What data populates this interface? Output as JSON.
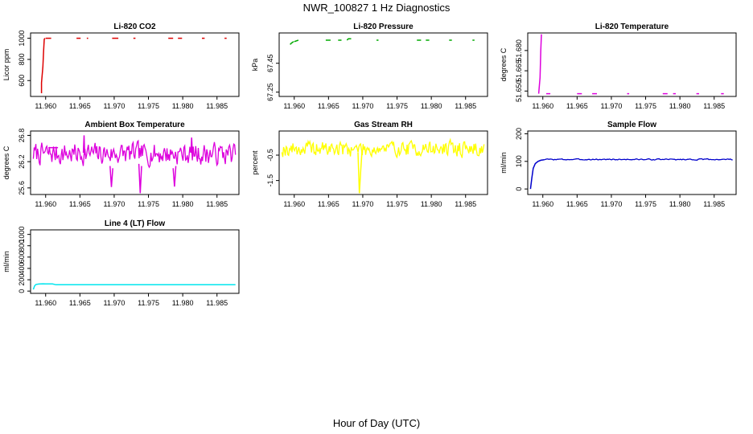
{
  "figure": {
    "title": "NWR_100827  1 Hz Diagnostics",
    "xlabel": "Hour of Day (UTC)"
  },
  "chart_data": [
    {
      "type": "line",
      "title": "Li-820 CO2",
      "ylabel": "Licor ppm",
      "xlim": [
        11.9578,
        11.9882
      ],
      "ylim": [
        450,
        1050
      ],
      "xticks": [
        11.96,
        11.965,
        11.97,
        11.975,
        11.98,
        11.985
      ],
      "xtick_labels": [
        "11.960",
        "11.965",
        "11.970",
        "11.975",
        "11.980",
        "11.985"
      ],
      "yticks": [
        600,
        800,
        1000
      ],
      "ytick_labels": [
        "600",
        "800",
        "1000"
      ],
      "color": "#dd0000",
      "style": "segments",
      "series": [
        {
          "name": "spike",
          "x": [
            11.9594,
            11.9594,
            11.9596,
            11.9597,
            11.9598,
            11.9599
          ],
          "y": [
            480,
            580,
            730,
            880,
            990,
            1000
          ]
        },
        {
          "name": "s1",
          "x": [
            11.96,
            11.9608
          ],
          "y": [
            1000,
            1000
          ]
        },
        {
          "name": "s2",
          "x": [
            11.9645,
            11.9651
          ],
          "y": [
            1000,
            1000
          ]
        },
        {
          "name": "s3",
          "x": [
            11.966,
            11.9662
          ],
          "y": [
            1000,
            1000
          ]
        },
        {
          "name": "s4",
          "x": [
            11.9697,
            11.9706
          ],
          "y": [
            1000,
            1000
          ]
        },
        {
          "name": "s5",
          "x": [
            11.9728,
            11.9731
          ],
          "y": [
            1000,
            1000
          ]
        },
        {
          "name": "s6",
          "x": [
            11.9779,
            11.9786
          ],
          "y": [
            1000,
            1000
          ]
        },
        {
          "name": "s7",
          "x": [
            11.9793,
            11.9799
          ],
          "y": [
            1000,
            1000
          ]
        },
        {
          "name": "s8",
          "x": [
            11.9828,
            11.9832
          ],
          "y": [
            1000,
            1000
          ]
        },
        {
          "name": "s9",
          "x": [
            11.9861,
            11.9864
          ],
          "y": [
            1000,
            1000
          ]
        }
      ]
    },
    {
      "type": "line",
      "title": "Li-820 Pressure",
      "ylabel": "kPa",
      "xlim": [
        11.9578,
        11.9882
      ],
      "ylim": [
        67.22,
        67.66
      ],
      "xticks": [
        11.96,
        11.965,
        11.97,
        11.975,
        11.98,
        11.985
      ],
      "xtick_labels": [
        "11.960",
        "11.965",
        "11.970",
        "11.975",
        "11.980",
        "11.985"
      ],
      "yticks": [
        67.25,
        67.45
      ],
      "ytick_labels": [
        "67.25",
        "67.45"
      ],
      "color": "#00aa00",
      "style": "segments",
      "series": [
        {
          "name": "s1",
          "x": [
            11.9594,
            11.9596,
            11.9599
          ],
          "y": [
            67.58,
            67.59,
            67.6
          ]
        },
        {
          "name": "s2",
          "x": [
            11.96,
            11.9606
          ],
          "y": [
            67.6,
            67.61
          ]
        },
        {
          "name": "s3",
          "x": [
            11.9646,
            11.9653
          ],
          "y": [
            67.61,
            67.61
          ]
        },
        {
          "name": "s4",
          "x": [
            11.9664,
            11.9669
          ],
          "y": [
            67.61,
            67.61
          ]
        },
        {
          "name": "s5",
          "x": [
            11.9677,
            11.9679,
            11.9683
          ],
          "y": [
            67.61,
            67.62,
            67.62
          ]
        },
        {
          "name": "s6",
          "x": [
            11.972,
            11.9723
          ],
          "y": [
            67.61,
            67.61
          ]
        },
        {
          "name": "s7",
          "x": [
            11.9779,
            11.9785
          ],
          "y": [
            67.61,
            67.61
          ]
        },
        {
          "name": "s8",
          "x": [
            11.9792,
            11.9797
          ],
          "y": [
            67.61,
            67.61
          ]
        },
        {
          "name": "s9",
          "x": [
            11.9826,
            11.983
          ],
          "y": [
            67.61,
            67.61
          ]
        },
        {
          "name": "s10",
          "x": [
            11.986,
            11.9863
          ],
          "y": [
            67.61,
            67.61
          ]
        }
      ]
    },
    {
      "type": "line",
      "title": "Li-820 Temperature",
      "ylabel": "degrees C",
      "xlim": [
        11.9578,
        11.9882
      ],
      "ylim": [
        51.646,
        51.693
      ],
      "xticks": [
        11.96,
        11.965,
        11.97,
        11.975,
        11.98,
        11.985
      ],
      "xtick_labels": [
        "11.960",
        "11.965",
        "11.970",
        "11.975",
        "11.980",
        "11.985"
      ],
      "yticks": [
        51.65,
        51.665,
        51.68
      ],
      "ytick_labels": [
        "51.650",
        "51.665",
        "51.680"
      ],
      "color": "#dd00dd",
      "style": "segments",
      "series": [
        {
          "name": "spike",
          "x": [
            11.9594,
            11.9596,
            11.9597,
            11.9598
          ],
          "y": [
            51.648,
            51.66,
            51.68,
            51.692
          ]
        },
        {
          "name": "s1",
          "x": [
            11.9605,
            11.9611
          ],
          "y": [
            51.648,
            51.648
          ]
        },
        {
          "name": "s2",
          "x": [
            11.965,
            11.9657
          ],
          "y": [
            51.648,
            51.648
          ]
        },
        {
          "name": "s3",
          "x": [
            11.9672,
            11.9679
          ],
          "y": [
            51.648,
            51.648
          ]
        },
        {
          "name": "s4",
          "x": [
            11.9723,
            11.9726
          ],
          "y": [
            51.648,
            51.648
          ]
        },
        {
          "name": "s5",
          "x": [
            11.9775,
            11.9782
          ],
          "y": [
            51.648,
            51.648
          ]
        },
        {
          "name": "s6",
          "x": [
            11.979,
            11.9794
          ],
          "y": [
            51.648,
            51.648
          ]
        },
        {
          "name": "s7",
          "x": [
            11.9824,
            11.9828
          ],
          "y": [
            51.648,
            51.648
          ]
        },
        {
          "name": "s8",
          "x": [
            11.986,
            11.9864
          ],
          "y": [
            51.648,
            51.648
          ]
        }
      ]
    },
    {
      "type": "line",
      "title": "Ambient Box Temperature",
      "ylabel": "degrees C",
      "xlim": [
        11.9578,
        11.9882
      ],
      "ylim": [
        25.45,
        26.9
      ],
      "xticks": [
        11.96,
        11.965,
        11.97,
        11.975,
        11.98,
        11.985
      ],
      "xtick_labels": [
        "11.960",
        "11.965",
        "11.970",
        "11.975",
        "11.980",
        "11.985"
      ],
      "yticks": [
        25.6,
        26.2,
        26.8
      ],
      "ytick_labels": [
        "25.6",
        "26.2",
        "26.8"
      ],
      "color": "#dd00dd",
      "style": "noise",
      "noise": {
        "x0": 11.9582,
        "x1": 11.9877,
        "n": 240,
        "base": 26.38,
        "amp": 0.34,
        "seed": 7
      },
      "series": [
        {
          "name": "flat",
          "x": [
            11.9604,
            11.9618
          ],
          "y": [
            26.52,
            26.52
          ]
        },
        {
          "name": "drop1",
          "x": [
            11.9694,
            11.9696,
            11.9698
          ],
          "y": [
            26.1,
            25.62,
            26.05
          ]
        },
        {
          "name": "drop2",
          "x": [
            11.9736,
            11.9738,
            11.974
          ],
          "y": [
            26.15,
            25.48,
            26.1
          ]
        },
        {
          "name": "drop3",
          "x": [
            11.9786,
            11.9788,
            11.979
          ],
          "y": [
            26.05,
            25.63,
            26.1
          ]
        },
        {
          "name": "peak1",
          "x": [
            11.9655,
            11.9656,
            11.9657
          ],
          "y": [
            26.4,
            26.8,
            26.35
          ]
        },
        {
          "name": "peak2",
          "x": [
            11.9812,
            11.9813,
            11.9814
          ],
          "y": [
            26.4,
            26.75,
            26.4
          ]
        }
      ]
    },
    {
      "type": "line",
      "title": "Gas Stream RH",
      "ylabel": "percent",
      "xlim": [
        11.9578,
        11.9882
      ],
      "ylim": [
        -2.05,
        0.45
      ],
      "xticks": [
        11.96,
        11.965,
        11.97,
        11.975,
        11.98,
        11.985
      ],
      "xtick_labels": [
        "11.960",
        "11.965",
        "11.970",
        "11.975",
        "11.980",
        "11.985"
      ],
      "yticks": [
        -1.5,
        -0.5
      ],
      "ytick_labels": [
        "-1.5",
        "-0.5"
      ],
      "color": "#ffff00",
      "style": "noise",
      "noise": {
        "x0": 11.9582,
        "x1": 11.9877,
        "n": 240,
        "base": -0.25,
        "amp": 0.42,
        "seed": 19
      },
      "series": [
        {
          "name": "drop",
          "x": [
            11.9693,
            11.9695,
            11.9697,
            11.9699
          ],
          "y": [
            -0.4,
            -2.0,
            -1.1,
            -0.3
          ]
        }
      ]
    },
    {
      "type": "line",
      "title": "Sample Flow",
      "ylabel": "ml/min",
      "xlim": [
        11.9578,
        11.9882
      ],
      "ylim": [
        -20,
        210
      ],
      "xticks": [
        11.96,
        11.965,
        11.97,
        11.975,
        11.98,
        11.985
      ],
      "xtick_labels": [
        "11.960",
        "11.965",
        "11.970",
        "11.975",
        "11.980",
        "11.985"
      ],
      "yticks": [
        0,
        100,
        200
      ],
      "ytick_labels": [
        "0",
        "100",
        "200"
      ],
      "color": "#0000cc",
      "style": "noise",
      "noise": {
        "x0": 11.9602,
        "x1": 11.9877,
        "n": 160,
        "base": 107,
        "amp": 3,
        "seed": 3
      },
      "series": [
        {
          "name": "ramp",
          "x": [
            11.9582,
            11.9584,
            11.9586,
            11.9589,
            11.9593,
            11.9597,
            11.9602
          ],
          "y": [
            0,
            40,
            75,
            92,
            100,
            104,
            106
          ]
        }
      ]
    },
    {
      "type": "line",
      "title": "Line 4 (LT) Flow",
      "ylabel": "ml/min",
      "xlim": [
        11.9578,
        11.9882
      ],
      "ylim": [
        -40,
        1080
      ],
      "xticks": [
        11.96,
        11.965,
        11.97,
        11.975,
        11.98,
        11.985
      ],
      "xtick_labels": [
        "11.960",
        "11.965",
        "11.970",
        "11.975",
        "11.980",
        "11.985"
      ],
      "yticks": [
        0,
        200,
        400,
        600,
        800,
        1000
      ],
      "ytick_labels": [
        "0",
        "200",
        "400",
        "600",
        "800",
        "1000"
      ],
      "color": "#00e5ee",
      "style": "segments",
      "series": [
        {
          "name": "trace",
          "x": [
            11.9582,
            11.9584,
            11.9586,
            11.959,
            11.9596,
            11.96,
            11.961,
            11.9615,
            11.9877
          ],
          "y": [
            30,
            95,
            118,
            125,
            128,
            127,
            126,
            112,
            112
          ]
        }
      ]
    }
  ]
}
